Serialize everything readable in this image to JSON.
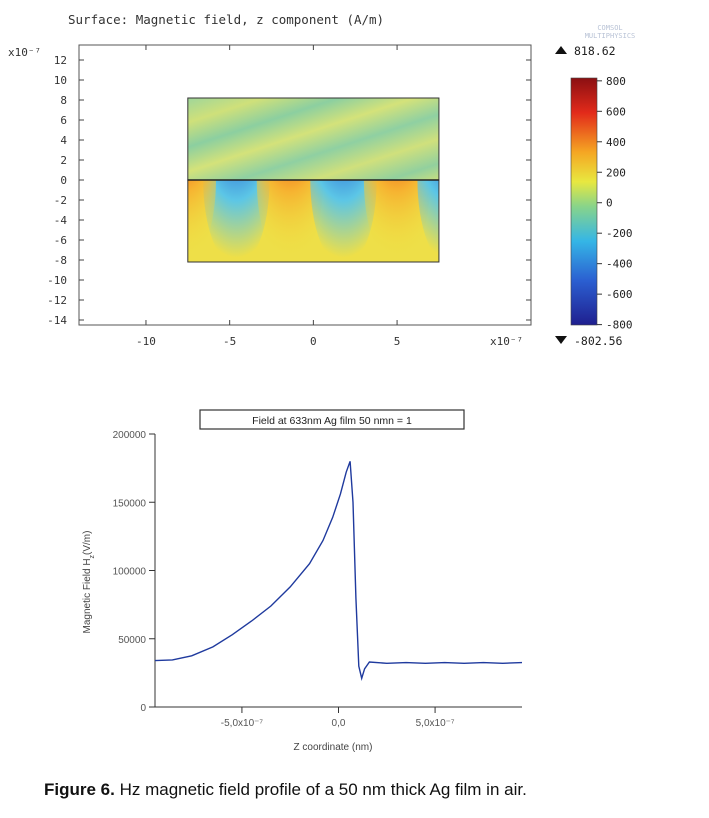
{
  "chart_data": [
    {
      "type": "heatmap",
      "title": "Surface: Magnetic field, z component (A/m)",
      "watermark": [
        "COMSOL",
        "MULTIPHYSICS"
      ],
      "x_ticks": [
        "-10",
        "-5",
        "0",
        "5"
      ],
      "x_tick_values": [
        -10,
        -5,
        0,
        5
      ],
      "x_multiplier": "x10⁻⁷",
      "xlim": [
        -14,
        13
      ],
      "y_ticks": [
        "12",
        "10",
        "8",
        "6",
        "4",
        "2",
        "0",
        "-2",
        "-4",
        "-6",
        "-8",
        "-10",
        "-12",
        "-14"
      ],
      "y_tick_values": [
        12,
        10,
        8,
        6,
        4,
        2,
        0,
        -2,
        -4,
        -6,
        -8,
        -10,
        -12,
        -14
      ],
      "y_multiplier": "x10⁻⁷",
      "ylim": [
        -14.5,
        13.5
      ],
      "film_region": {
        "x": [
          -7.5,
          7.5
        ],
        "y_top": [
          0,
          8.2
        ],
        "y_bottom": [
          -8.2,
          0
        ]
      },
      "colorbar": {
        "max_label": "818.62",
        "min_label": "-802.56",
        "ticks": [
          "800",
          "600",
          "400",
          "200",
          "0",
          "-200",
          "-400",
          "-600",
          "-800"
        ],
        "tick_values": [
          800,
          600,
          400,
          200,
          0,
          -200,
          -400,
          -600,
          -800
        ],
        "range": [
          -802.56,
          818.62
        ],
        "colors": [
          "#1f1f8f",
          "#2b5fd1",
          "#35b6e6",
          "#88d48a",
          "#e8e840",
          "#f5a623",
          "#e22a1a",
          "#8b0f12"
        ]
      }
    },
    {
      "type": "line",
      "title": "Field at 633nm Ag film 50 nmn = 1",
      "xlabel": "Z coordinate (nm)",
      "ylabel": "Magnetic Field H_z(V/m)",
      "ylabel_parts": {
        "main": "Magnetic Field H",
        "sub": "z",
        "tail": "(V/m)"
      },
      "x_ticks": [
        "-5,0x10⁻⁷",
        "0,0",
        "5,0x10⁻⁷"
      ],
      "x_tick_values": [
        -5e-07,
        0,
        5e-07
      ],
      "y_ticks": [
        "200000",
        "150000",
        "100000",
        "50000",
        "0"
      ],
      "y_tick_values": [
        200000,
        150000,
        100000,
        50000,
        0
      ],
      "xlim": [
        -9.5e-07,
        9.5e-07
      ],
      "ylim": [
        0,
        200000
      ],
      "series": [
        {
          "color": "#1f3a9e",
          "points": [
            [
              -9.5e-07,
              34000
            ],
            [
              -8.6e-07,
              34500
            ],
            [
              -7.6e-07,
              37500
            ],
            [
              -6.5e-07,
              44000
            ],
            [
              -5.5e-07,
              53000
            ],
            [
              -4.5e-07,
              63000
            ],
            [
              -3.5e-07,
              74000
            ],
            [
              -2.5e-07,
              88000
            ],
            [
              -1.5e-07,
              105000
            ],
            [
              -8e-08,
              122000
            ],
            [
              -3e-08,
              139000
            ],
            [
              1e-08,
              156000
            ],
            [
              4e-08,
              172000
            ],
            [
              6e-08,
              180000
            ],
            [
              7.5e-08,
              150000
            ],
            [
              9e-08,
              80000
            ],
            [
              1.05e-07,
              30000
            ],
            [
              1.2e-07,
              21000
            ],
            [
              1.35e-07,
              28000
            ],
            [
              1.6e-07,
              33000
            ],
            [
              2.5e-07,
              32000
            ],
            [
              3.5e-07,
              32500
            ],
            [
              4.5e-07,
              32000
            ],
            [
              5.5e-07,
              32500
            ],
            [
              6.5e-07,
              32000
            ],
            [
              7.5e-07,
              32500
            ],
            [
              8.5e-07,
              32000
            ],
            [
              9.5e-07,
              32500
            ]
          ]
        }
      ]
    }
  ],
  "caption": {
    "label": "Figure 6.",
    "text": " Hz magnetic field profile of a 50 nm thick Ag film in air."
  }
}
